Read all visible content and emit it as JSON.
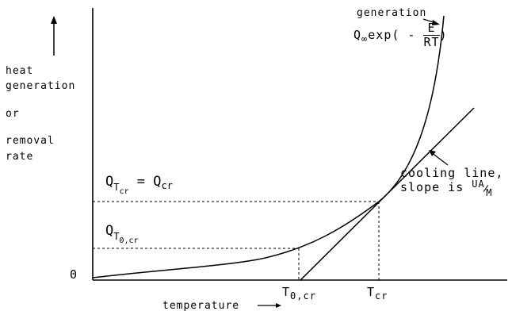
{
  "ylabel": {
    "line1": "heat",
    "line2": "generation",
    "line3": "or",
    "line4": "removal",
    "line5": "rate"
  },
  "origin_label": "0",
  "xlabel": "temperature",
  "generation_curve": {
    "title": "generation",
    "formula_prefix": "Q",
    "formula_prefix_sub": "∞",
    "formula_mid": "exp( -",
    "formula_num": "E",
    "formula_den": "RT",
    "formula_end": ")"
  },
  "cooling_line": {
    "line1": "cooling line,",
    "line2": "slope is",
    "slope_num": "UA",
    "slope_den": "M"
  },
  "q_cr_label": {
    "q1": "Q",
    "q1_sub": "T",
    "q1_subsub": "cr",
    "eq": "= Q",
    "q2_sub": "cr"
  },
  "q_t0_label": {
    "q": "Q",
    "sub": "T",
    "subsub": "0,cr"
  },
  "x_ticks": {
    "t0_main": "T",
    "t0_sub": "0,cr",
    "tcr_main": "T",
    "tcr_sub": "cr"
  }
}
